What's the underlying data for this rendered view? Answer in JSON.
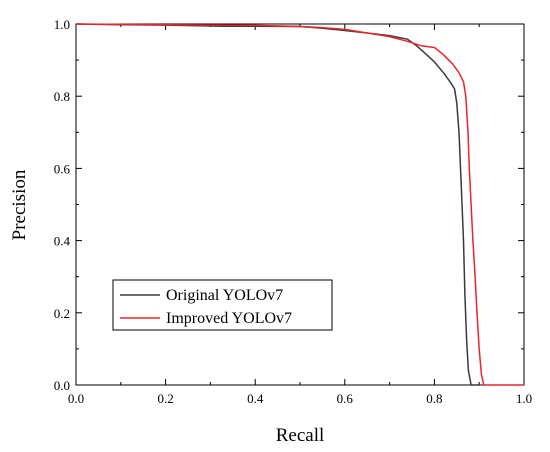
{
  "chart_data": {
    "type": "line",
    "xlabel": "Recall",
    "ylabel": "Precision",
    "xlim": [
      0.0,
      1.0
    ],
    "ylim": [
      0.0,
      1.0
    ],
    "x_ticks": [
      "0.0",
      "0.2",
      "0.4",
      "0.6",
      "0.8",
      "1.0"
    ],
    "y_ticks": [
      "0.0",
      "0.2",
      "0.4",
      "0.6",
      "0.8",
      "1.0"
    ],
    "grid": false,
    "legend": "lower-left",
    "series": [
      {
        "name": "Original YOLOv7",
        "color": "#3a3a3a",
        "points": [
          [
            0.0,
            1.0
          ],
          [
            0.1,
            0.998
          ],
          [
            0.2,
            0.997
          ],
          [
            0.33,
            0.994
          ],
          [
            0.4,
            0.994
          ],
          [
            0.5,
            0.993
          ],
          [
            0.55,
            0.988
          ],
          [
            0.6,
            0.982
          ],
          [
            0.65,
            0.975
          ],
          [
            0.7,
            0.968
          ],
          [
            0.74,
            0.958
          ],
          [
            0.76,
            0.94
          ],
          [
            0.78,
            0.918
          ],
          [
            0.8,
            0.895
          ],
          [
            0.82,
            0.865
          ],
          [
            0.835,
            0.84
          ],
          [
            0.845,
            0.82
          ],
          [
            0.85,
            0.78
          ],
          [
            0.855,
            0.7
          ],
          [
            0.86,
            0.55
          ],
          [
            0.865,
            0.4
          ],
          [
            0.868,
            0.25
          ],
          [
            0.872,
            0.12
          ],
          [
            0.876,
            0.04
          ],
          [
            0.882,
            0.0
          ],
          [
            0.9,
            0.0
          ]
        ]
      },
      {
        "name": "Improved YOLOv7",
        "color": "#e8262b",
        "points": [
          [
            0.0,
            1.0
          ],
          [
            0.1,
            0.999
          ],
          [
            0.2,
            0.998
          ],
          [
            0.3,
            0.997
          ],
          [
            0.4,
            0.996
          ],
          [
            0.5,
            0.993
          ],
          [
            0.55,
            0.99
          ],
          [
            0.6,
            0.985
          ],
          [
            0.65,
            0.975
          ],
          [
            0.7,
            0.965
          ],
          [
            0.74,
            0.952
          ],
          [
            0.77,
            0.94
          ],
          [
            0.8,
            0.935
          ],
          [
            0.82,
            0.915
          ],
          [
            0.84,
            0.89
          ],
          [
            0.855,
            0.865
          ],
          [
            0.865,
            0.84
          ],
          [
            0.87,
            0.8
          ],
          [
            0.875,
            0.7
          ],
          [
            0.878,
            0.6
          ],
          [
            0.882,
            0.5
          ],
          [
            0.886,
            0.4
          ],
          [
            0.89,
            0.32
          ],
          [
            0.895,
            0.2
          ],
          [
            0.9,
            0.1
          ],
          [
            0.905,
            0.03
          ],
          [
            0.91,
            0.0
          ],
          [
            1.0,
            0.0
          ]
        ]
      }
    ]
  }
}
